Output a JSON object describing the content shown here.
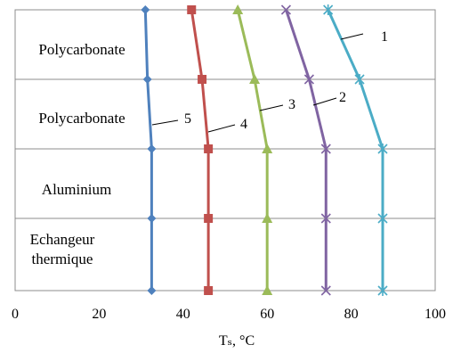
{
  "chart_data": {
    "type": "line",
    "xlabel": "Tₛ, °C",
    "xlim": [
      0,
      100
    ],
    "xticks": [
      0,
      20,
      40,
      60,
      80,
      100
    ],
    "grid_y": true,
    "layers": [
      "Polycarbonate",
      "Polycarbonate",
      "Aluminium",
      "Echangeur thermique"
    ],
    "y_levels": 5,
    "series": [
      {
        "name": "1",
        "color": "#4bacc6",
        "marker": "star",
        "x": [
          74.5,
          82,
          87.5,
          87.5,
          87.5
        ]
      },
      {
        "name": "2",
        "color": "#8064a2",
        "marker": "x",
        "x": [
          64.5,
          70,
          74,
          74,
          74
        ]
      },
      {
        "name": "3",
        "color": "#9bbb59",
        "marker": "triangle",
        "x": [
          53,
          57,
          60,
          60,
          60
        ]
      },
      {
        "name": "4",
        "color": "#c0504d",
        "marker": "square",
        "x": [
          42,
          44.5,
          46,
          46,
          46
        ]
      },
      {
        "name": "5",
        "color": "#4f81bd",
        "marker": "diamond",
        "x": [
          31,
          31.5,
          32.5,
          32.5,
          32.5
        ]
      }
    ]
  }
}
